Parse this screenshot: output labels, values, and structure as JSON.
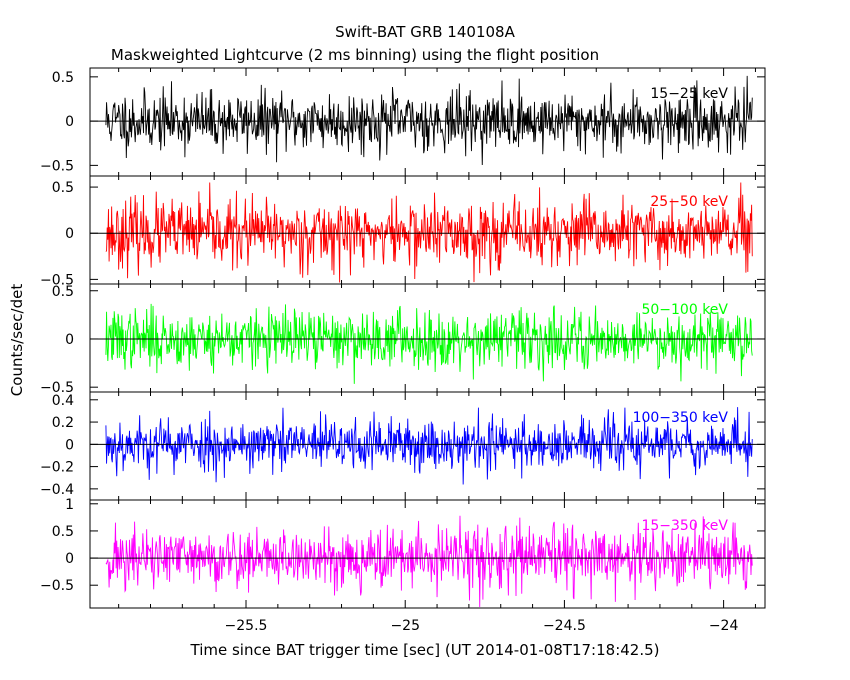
{
  "chart_data": {
    "type": "line",
    "title": "Swift-BAT GRB 140108A",
    "subtitle": "Maskweighted Lightcurve (2 ms binning) using the flight position",
    "xlabel": "Time since BAT trigger time [sec] (UT 2014-01-08T17:18:42.5)",
    "ylabel": "Counts/sec/det",
    "xlim": [
      -25.99,
      -23.87
    ],
    "x_ticks": [
      -25.5,
      -25,
      -24.5,
      -24
    ],
    "x_tick_labels": [
      "−25.5",
      "−25",
      "−24.5",
      "−24"
    ],
    "x_data_range": [
      -25.94,
      -23.91
    ],
    "bin_width_s": 0.002,
    "legend_placement": "top-right of each panel",
    "grid": false,
    "panels": [
      {
        "name": "15−25 keV",
        "color": "#000000",
        "ylim": [
          -0.62,
          0.6
        ],
        "y_ticks": [
          -0.5,
          0,
          0.5
        ],
        "y_tick_labels": [
          "−0.5",
          "0",
          "0.5"
        ],
        "typical_amplitude": 0.22,
        "max_amplitude": 0.58,
        "seed": 11
      },
      {
        "name": "25−50 keV",
        "color": "#ff0000",
        "ylim": [
          -0.55,
          0.62
        ],
        "y_ticks": [
          -0.5,
          0,
          0.5
        ],
        "y_tick_labels": [
          "−0.5",
          "0",
          "0.5"
        ],
        "typical_amplitude": 0.24,
        "max_amplitude": 0.55,
        "seed": 23
      },
      {
        "name": "50−100 keV",
        "color": "#00ff00",
        "ylim": [
          -0.55,
          0.57
        ],
        "y_ticks": [
          -0.5,
          0,
          0.5
        ],
        "y_tick_labels": [
          "−0.5",
          "0",
          "0.5"
        ],
        "typical_amplitude": 0.2,
        "max_amplitude": 0.5,
        "seed": 37
      },
      {
        "name": "100−350 keV",
        "color": "#0000ff",
        "ylim": [
          -0.5,
          0.47
        ],
        "y_ticks": [
          -0.4,
          -0.2,
          0,
          0.2,
          0.4
        ],
        "y_tick_labels": [
          "−0.4",
          "−0.2",
          "0",
          "0.2",
          "0.4"
        ],
        "typical_amplitude": 0.16,
        "max_amplitude": 0.48,
        "seed": 53
      },
      {
        "name": "15−350 keV",
        "color": "#ff00ff",
        "ylim": [
          -0.92,
          1.07
        ],
        "y_ticks": [
          -0.5,
          0,
          0.5,
          1
        ],
        "y_tick_labels": [
          "−0.5",
          "0",
          "0.5",
          "1"
        ],
        "typical_amplitude": 0.38,
        "max_amplitude": 0.95,
        "seed": 71
      }
    ]
  }
}
